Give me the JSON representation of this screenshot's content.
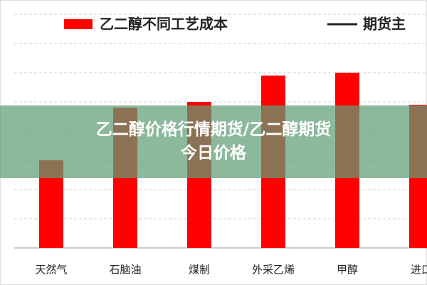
{
  "chart_data": {
    "type": "bar",
    "categories": [
      "天然气",
      "石脑油",
      "煤制",
      "外采乙烯",
      "甲醇",
      "进口"
    ],
    "series": [
      {
        "name": "乙二醇不同工艺成本",
        "type": "bar",
        "color": "#ff0000",
        "values": [
          3000,
          4800,
          5000,
          5900,
          6000,
          4900
        ]
      },
      {
        "name": "期货主",
        "type": "line",
        "color": "#222222",
        "values": [
          4900,
          4900,
          4900,
          4900,
          4900,
          4900
        ]
      }
    ],
    "ylim": [
      0,
      8000
    ],
    "yticks": [
      0,
      1000,
      2000,
      3000,
      4000,
      5000,
      6000,
      7000,
      8000
    ],
    "grid": true
  },
  "banner": {
    "lines": [
      "乙二醇价格行情期货/乙二醇期货",
      "今日价格"
    ]
  }
}
